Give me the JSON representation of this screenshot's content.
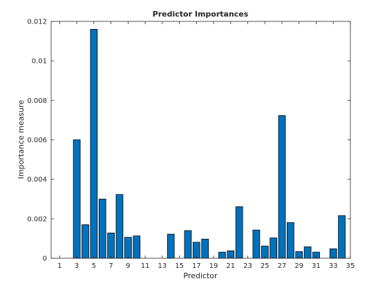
{
  "chart_data": {
    "type": "bar",
    "title": "Predictor Importances",
    "xlabel": "Predictor",
    "ylabel": "Importance measure",
    "x": [
      1,
      2,
      3,
      4,
      5,
      6,
      7,
      8,
      9,
      10,
      11,
      12,
      13,
      14,
      15,
      16,
      17,
      18,
      19,
      20,
      21,
      22,
      23,
      24,
      25,
      26,
      27,
      28,
      29,
      30,
      31,
      32,
      33,
      34
    ],
    "values": [
      0,
      0,
      0.006,
      0.0017,
      0.0116,
      0.003,
      0.00128,
      0.00323,
      0.00106,
      0.00113,
      0,
      0,
      0,
      0.00122,
      0,
      0.0014,
      0.00081,
      0.00097,
      0,
      0.00031,
      0.00038,
      0.00261,
      0,
      0.00143,
      0.00062,
      0.00103,
      0.00723,
      0.00181,
      0.00034,
      0.00058,
      0.00031,
      0,
      0.00048,
      0.00216
    ],
    "xlim": [
      0,
      35
    ],
    "ylim": [
      0,
      0.012
    ],
    "xticks": [
      1,
      3,
      5,
      7,
      9,
      11,
      13,
      15,
      17,
      19,
      21,
      23,
      25,
      27,
      29,
      31,
      33,
      35
    ],
    "xtick_labels": [
      "1",
      "3",
      "5",
      "7",
      "9",
      "11",
      "13",
      "15",
      "17",
      "19",
      "21",
      "23",
      "25",
      "27",
      "29",
      "31",
      "33",
      "35"
    ],
    "yticks": [
      0,
      0.002,
      0.004,
      0.006,
      0.008,
      0.01,
      0.012
    ],
    "ytick_labels": [
      "0",
      "0.002",
      "0.004",
      "0.006",
      "0.008",
      "0.01",
      "0.012"
    ],
    "grid": false,
    "bar_color": "#0072BD"
  }
}
